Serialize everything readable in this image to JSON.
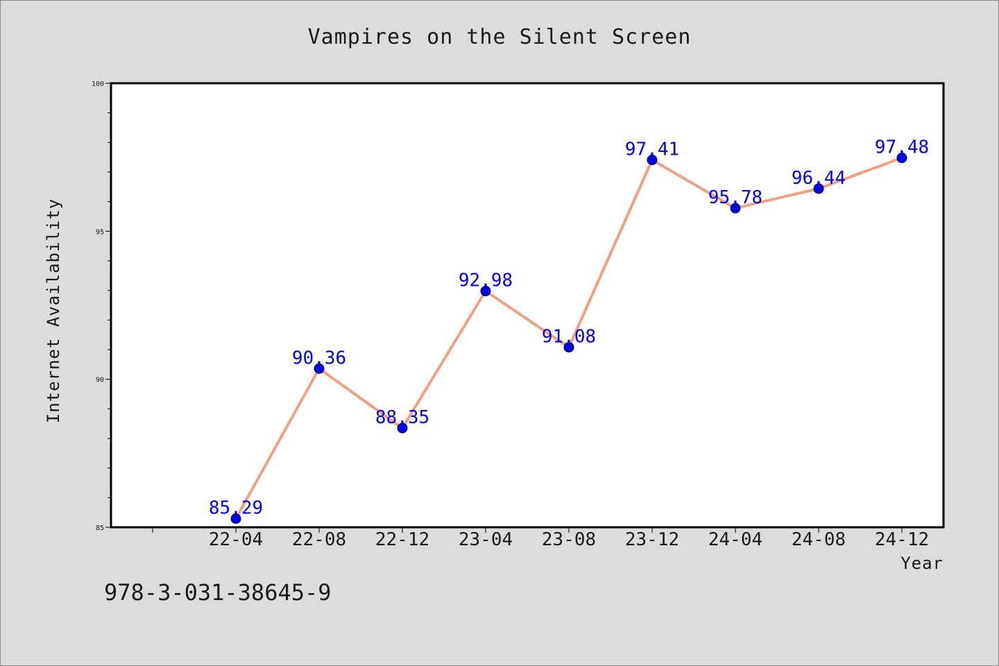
{
  "chart_data": {
    "type": "line",
    "title": "Vampires on the Silent Screen",
    "xlabel": "Year",
    "ylabel": "Internet Availability",
    "categories": [
      "22-04",
      "22-08",
      "22-12",
      "23-04",
      "23-08",
      "23-12",
      "24-04",
      "24-08",
      "24-12"
    ],
    "series": [
      {
        "values": [
          85.29,
          90.36,
          88.35,
          92.98,
          91.08,
          97.41,
          95.78,
          96.44,
          97.48
        ],
        "data_labels": [
          "85.29",
          "90.36",
          "88.35",
          "92.98",
          "91.08",
          "97.41",
          "95.78",
          "96.44",
          "97.48"
        ],
        "line_color": "#f4a080",
        "marker_color": "#0000ee"
      }
    ],
    "ylim": [
      85,
      100
    ],
    "yticks": [
      "85",
      "90",
      "95",
      "100"
    ],
    "grid": false,
    "legend": "none"
  },
  "annotation": "978-3-031-38645-9",
  "colors": {
    "background": "#dcdcdc",
    "plot_background": "#ffffff",
    "line": "#f4a080",
    "marker": "#0000ee",
    "data_label": "#0000ee"
  }
}
